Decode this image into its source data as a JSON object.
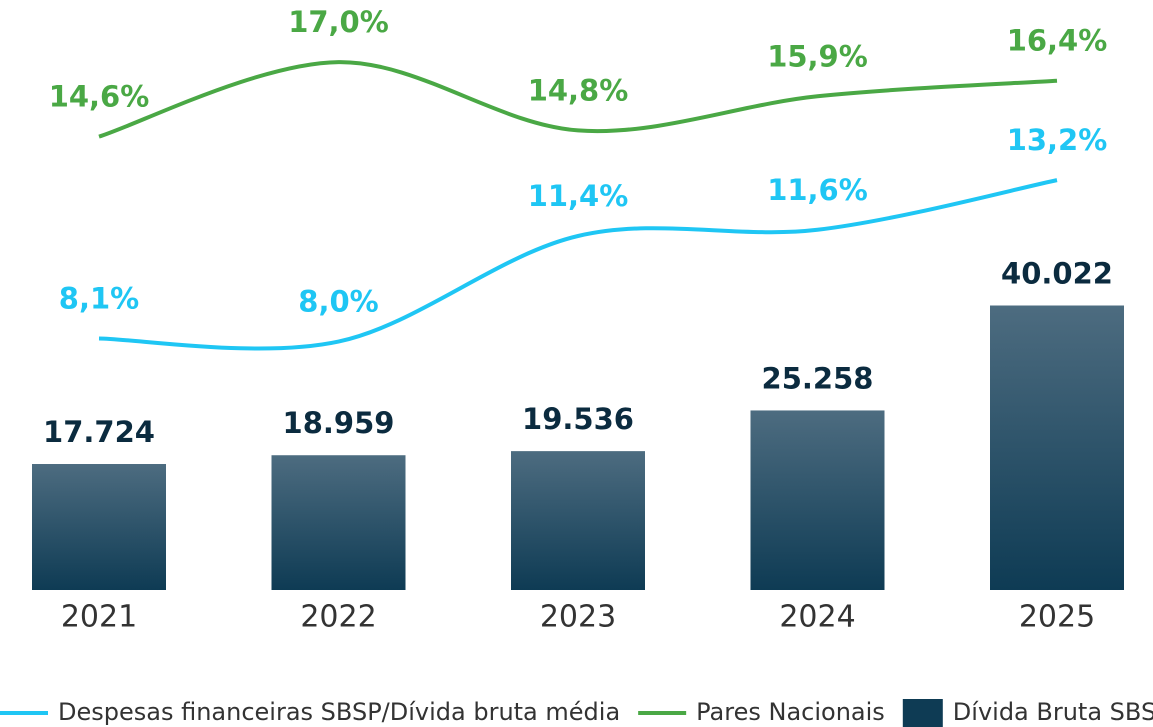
{
  "chart_data": {
    "type": "bar",
    "categories": [
      "2021",
      "2022",
      "2023",
      "2024",
      "2025"
    ],
    "series": [
      {
        "name": "Despesas financeiras SBSP/Dívida bruta média",
        "type": "line",
        "axis": "y2",
        "color": "#1fc6f4",
        "values": [
          8.1,
          8.0,
          11.4,
          11.6,
          13.2
        ],
        "value_labels": [
          "8,1%",
          "8,0%",
          "11,4%",
          "11,6%",
          "13,2%"
        ]
      },
      {
        "name": "Pares Nacionais",
        "type": "line",
        "axis": "y2",
        "color": "#4aa845",
        "values": [
          14.6,
          17.0,
          14.8,
          15.9,
          16.4
        ],
        "value_labels": [
          "14,6%",
          "17,0%",
          "14,8%",
          "15,9%",
          "16,4%"
        ]
      },
      {
        "name": "Dívida Bruta SBSP",
        "type": "bar",
        "color": "#0e3b54",
        "values": [
          17724,
          18959,
          19536,
          25258,
          40022
        ],
        "value_labels": [
          "17.724",
          "18.959",
          "19.536",
          "25.258",
          "40.022"
        ]
      }
    ],
    "ylim": [
      0,
      83000
    ],
    "y2lim": [
      0,
      19
    ]
  }
}
